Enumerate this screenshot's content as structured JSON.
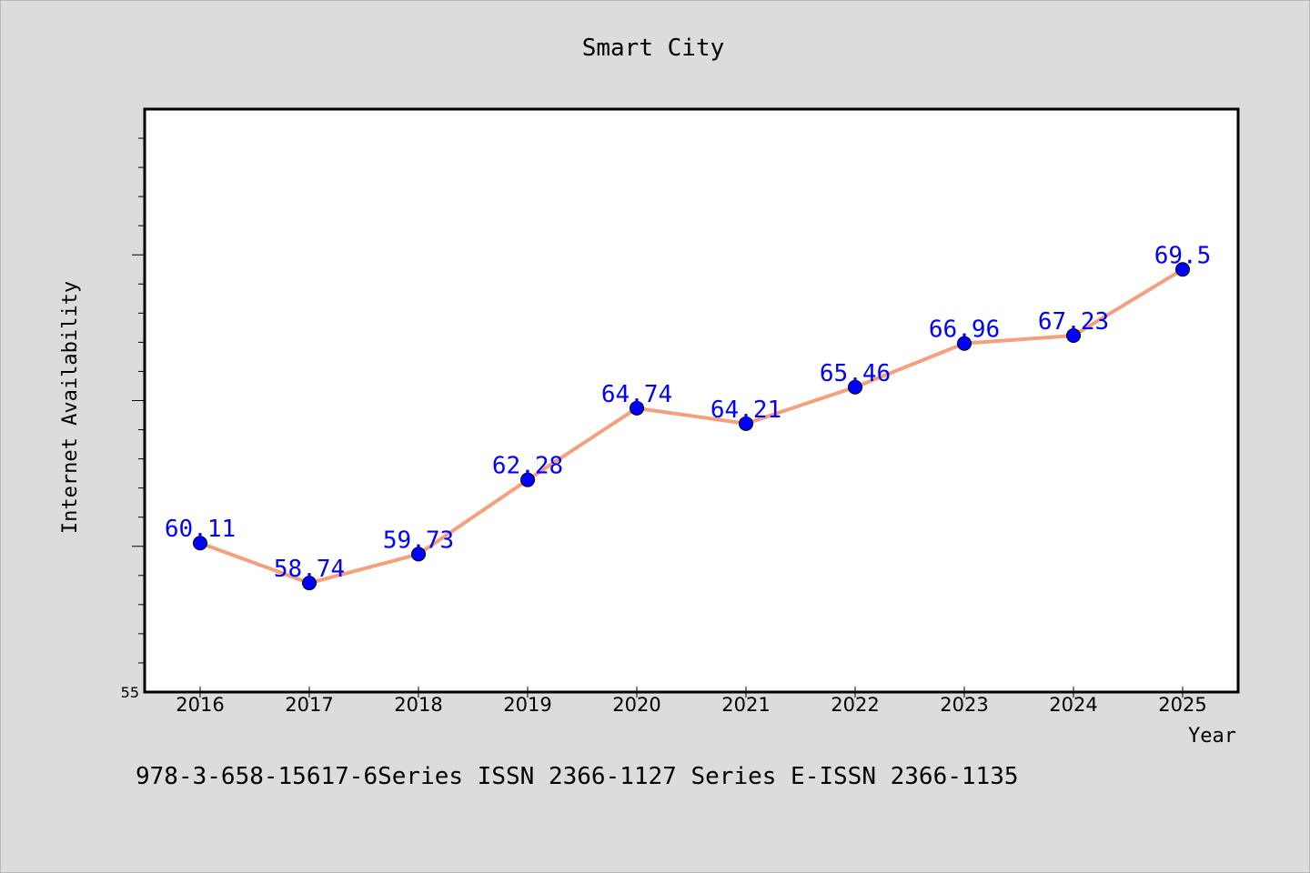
{
  "chart_data": {
    "type": "line",
    "title": "Smart City",
    "xlabel": "Year",
    "ylabel": "Internet Availability",
    "categories": [
      "2016",
      "2017",
      "2018",
      "2019",
      "2020",
      "2021",
      "2022",
      "2023",
      "2024",
      "2025"
    ],
    "series": [
      {
        "values": [
          60.11,
          58.74,
          59.73,
          62.28,
          64.74,
          64.21,
          65.46,
          66.96,
          67.23,
          69.5
        ]
      }
    ],
    "data_labels": [
      "60.11",
      "58.74",
      "59.73",
      "62.28",
      "64.74",
      "64.21",
      "65.46",
      "66.96",
      "67.23",
      "69.5"
    ],
    "y_tick_label": "55",
    "ylim": [
      55,
      75
    ],
    "grid": false,
    "colors": {
      "line": "#f4a07c",
      "marker": "#0000ff",
      "label": "#0000ff",
      "background": "#dcdcdc",
      "plot_background": "#ffffff"
    }
  },
  "footer_text": "978-3-658-15617-6Series ISSN 2366-1127 Series E-ISSN 2366-1135"
}
